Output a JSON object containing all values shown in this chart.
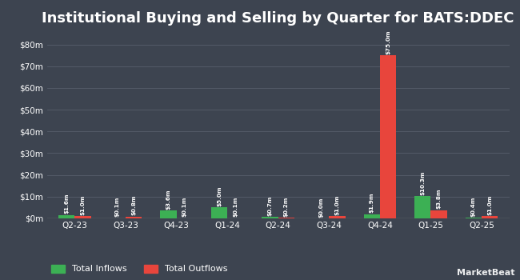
{
  "title": "Institutional Buying and Selling by Quarter for BATS:DDEC",
  "quarters": [
    "Q2-23",
    "Q3-23",
    "Q4-23",
    "Q1-24",
    "Q2-24",
    "Q3-24",
    "Q4-24",
    "Q1-25",
    "Q2-25"
  ],
  "inflows": [
    1.6,
    0.1,
    3.6,
    5.0,
    0.7,
    0.0,
    1.9,
    10.3,
    0.4
  ],
  "outflows": [
    1.0,
    0.8,
    0.1,
    0.1,
    0.2,
    1.0,
    75.0,
    3.8,
    1.0
  ],
  "inflow_labels": [
    "$1.6m",
    "$0.1m",
    "$3.6m",
    "$5.0m",
    "$0.7m",
    "$0.0m",
    "$1.9m",
    "$10.3m",
    "$0.4m"
  ],
  "outflow_labels": [
    "$1.0m",
    "$0.8m",
    "$0.1m",
    "$0.1m",
    "$0.2m",
    "$1.0m",
    "$75.0m",
    "$3.8m",
    "$1.0m"
  ],
  "inflow_color": "#3cb054",
  "outflow_color": "#e8453c",
  "bg_color": "#3d4450",
  "text_color": "#ffffff",
  "grid_color": "#555d6b",
  "ylim": [
    0,
    85
  ],
  "yticks": [
    0,
    10,
    20,
    30,
    40,
    50,
    60,
    70,
    80
  ],
  "ytick_labels": [
    "$0m",
    "$10m",
    "$20m",
    "$30m",
    "$40m",
    "$50m",
    "$60m",
    "$70m",
    "$80m"
  ],
  "bar_width": 0.32,
  "legend_inflow": "Total Inflows",
  "legend_outflow": "Total Outflows",
  "title_fontsize": 13,
  "axis_fontsize": 7.5,
  "label_fontsize": 5.2,
  "legend_fontsize": 8
}
